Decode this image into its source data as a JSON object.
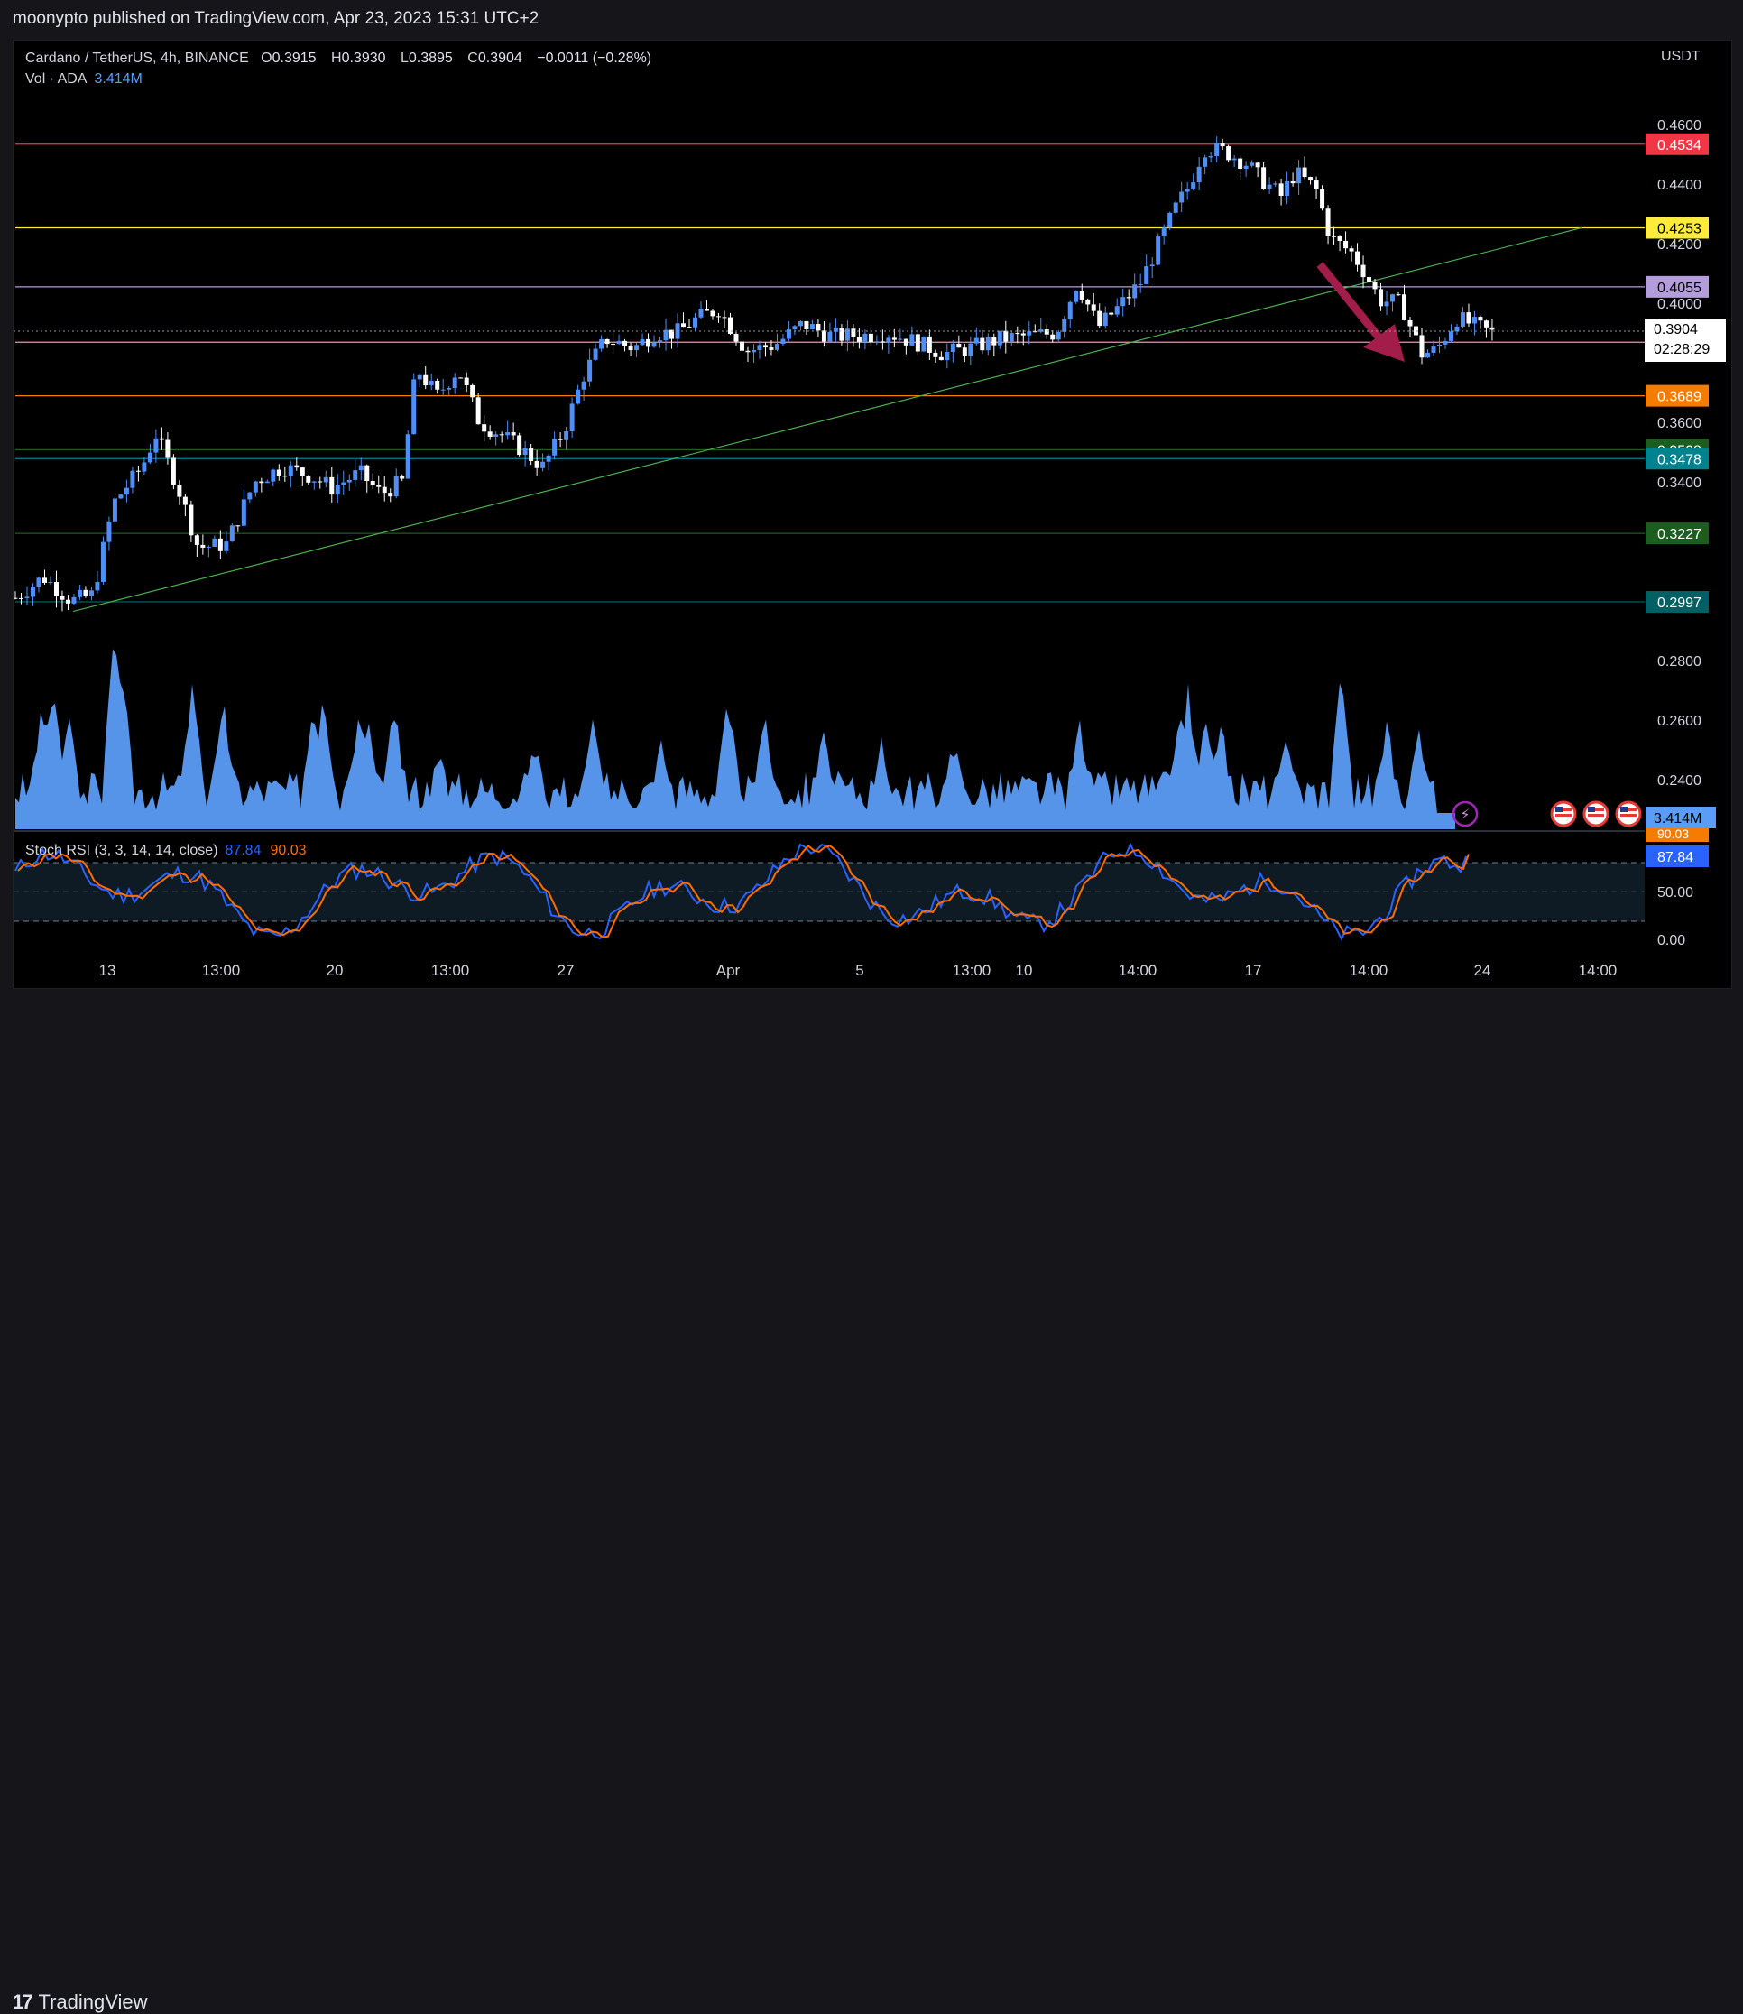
{
  "header": {
    "publisher": "moonypto published on TradingView.com, Apr 23, 2023 15:31 UTC+2"
  },
  "legend": {
    "symbol": "Cardano / TetherUS, 4h, BINANCE",
    "open_label": "O",
    "open": "0.3915",
    "high_label": "H",
    "high": "0.3930",
    "low_label": "L",
    "low": "0.3895",
    "close_label": "C",
    "close": "0.3904",
    "change": "−0.0011 (−0.28%)",
    "vol_label": "Vol · ADA",
    "vol_value": "3.414M"
  },
  "axis": {
    "currency": "USDT",
    "price_ticks": [
      "0.4600",
      "0.4400",
      "0.4200",
      "0.4000",
      "0.3600",
      "0.3400",
      "0.2800",
      "0.2600",
      "0.2400"
    ],
    "osc_ticks": [
      "50.00",
      "0.00"
    ],
    "time_ticks": [
      "13",
      "13:00",
      "20",
      "13:00",
      "27",
      "Apr",
      "5",
      "13:00",
      "10",
      "14:00",
      "17",
      "14:00",
      "24",
      "14:00"
    ]
  },
  "levels": [
    {
      "price": 0.4534,
      "label": "0.4534",
      "color": "#f23645",
      "text_color": "#ffffff"
    },
    {
      "price": 0.4253,
      "label": "0.4253",
      "color": "#ffeb3b",
      "text_color": "#000000"
    },
    {
      "price": 0.4055,
      "label": "0.4055",
      "color": "#b39ddb",
      "text_color": "#000000"
    },
    {
      "price": 0.3869,
      "label": "0.3869",
      "color": "#f48fb1",
      "text_color": "#000000"
    },
    {
      "price": 0.3689,
      "label": "0.3689",
      "color": "#f57c00",
      "text_color": "#ffffff"
    },
    {
      "price": 0.3508,
      "label": "0.3508",
      "color": "#1b5e20",
      "text_color": "#ffffff"
    },
    {
      "price": 0.3478,
      "label": "0.3478",
      "color": "#00838f",
      "text_color": "#ffffff"
    },
    {
      "price": 0.3227,
      "label": "0.3227",
      "color": "#1b5e20",
      "text_color": "#ffffff"
    },
    {
      "price": 0.2997,
      "label": "0.2997",
      "color": "#006064",
      "text_color": "#ffffff"
    }
  ],
  "last_price": {
    "label": "0.3904",
    "countdown": "02:28:29"
  },
  "volume_badge": "3.414M",
  "stoch": {
    "label": "Stoch RSI (3, 3, 14, 14, close)",
    "k_value": "87.84",
    "d_value": "90.03",
    "k_color": "#2962ff",
    "d_color": "#ff6d00"
  },
  "brand": "TradingView",
  "chart_data": {
    "type": "candlestick",
    "symbol": "ADA/USDT",
    "interval": "4h",
    "price_range": [
      0.225,
      0.472
    ],
    "trendline": {
      "from": [
        0,
        0.2965
      ],
      "to": [
        1,
        0.4253
      ]
    },
    "close_path": [
      [
        0.0,
        0.301
      ],
      [
        0.02,
        0.308
      ],
      [
        0.04,
        0.3
      ],
      [
        0.055,
        0.302
      ],
      [
        0.07,
        0.333
      ],
      [
        0.09,
        0.345
      ],
      [
        0.1,
        0.356
      ],
      [
        0.115,
        0.339
      ],
      [
        0.13,
        0.318
      ],
      [
        0.15,
        0.319
      ],
      [
        0.17,
        0.34
      ],
      [
        0.19,
        0.345
      ],
      [
        0.21,
        0.342
      ],
      [
        0.225,
        0.338
      ],
      [
        0.245,
        0.343
      ],
      [
        0.26,
        0.336
      ],
      [
        0.275,
        0.34
      ],
      [
        0.285,
        0.378
      ],
      [
        0.3,
        0.369
      ],
      [
        0.315,
        0.378
      ],
      [
        0.33,
        0.36
      ],
      [
        0.345,
        0.356
      ],
      [
        0.36,
        0.351
      ],
      [
        0.375,
        0.345
      ],
      [
        0.39,
        0.357
      ],
      [
        0.405,
        0.377
      ],
      [
        0.42,
        0.388
      ],
      [
        0.44,
        0.385
      ],
      [
        0.455,
        0.39
      ],
      [
        0.47,
        0.39
      ],
      [
        0.485,
        0.395
      ],
      [
        0.5,
        0.398
      ],
      [
        0.52,
        0.384
      ],
      [
        0.54,
        0.386
      ],
      [
        0.56,
        0.393
      ],
      [
        0.58,
        0.389
      ],
      [
        0.6,
        0.389
      ],
      [
        0.62,
        0.39
      ],
      [
        0.64,
        0.387
      ],
      [
        0.66,
        0.383
      ],
      [
        0.68,
        0.385
      ],
      [
        0.7,
        0.388
      ],
      [
        0.72,
        0.389
      ],
      [
        0.74,
        0.39
      ],
      [
        0.755,
        0.407
      ],
      [
        0.77,
        0.392
      ],
      [
        0.785,
        0.399
      ],
      [
        0.8,
        0.407
      ],
      [
        0.815,
        0.422
      ],
      [
        0.825,
        0.432
      ],
      [
        0.835,
        0.44
      ],
      [
        0.845,
        0.452
      ],
      [
        0.86,
        0.451
      ],
      [
        0.875,
        0.447
      ],
      [
        0.885,
        0.442
      ],
      [
        0.9,
        0.436
      ],
      [
        0.91,
        0.444
      ],
      [
        0.925,
        0.438
      ],
      [
        0.935,
        0.422
      ],
      [
        0.95,
        0.417
      ],
      [
        0.96,
        0.41
      ],
      [
        0.97,
        0.401
      ],
      [
        0.985,
        0.4
      ],
      [
        1.0,
        0.383
      ],
      [
        1.01,
        0.384
      ],
      [
        1.025,
        0.395
      ],
      [
        1.04,
        0.392
      ],
      [
        1.05,
        0.39
      ]
    ],
    "stoch_rsi": {
      "k_last": 87.84,
      "d_last": 90.03,
      "range": [
        0,
        100
      ]
    }
  }
}
